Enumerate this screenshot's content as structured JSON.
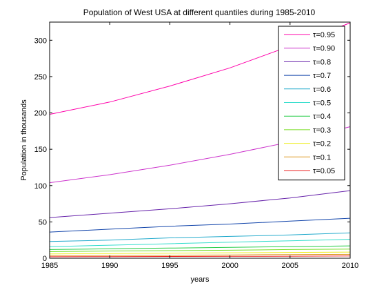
{
  "chart_data": {
    "type": "line",
    "title": "Population of West USA at different quantiles during 1985-2010",
    "xlabel": "years",
    "ylabel": "Population in thousands",
    "xlim": [
      1985,
      2010
    ],
    "ylim": [
      0,
      325
    ],
    "x_ticks": [
      1985,
      1990,
      1995,
      2000,
      2005,
      2010
    ],
    "y_ticks": [
      0,
      50,
      100,
      150,
      200,
      250,
      300
    ],
    "grid": false,
    "legend_position": "top-right",
    "x": [
      1985,
      1990,
      1995,
      2000,
      2005,
      2010
    ],
    "series": [
      {
        "name": "τ=0.95",
        "color": "#ff00aa",
        "values": [
          198,
          215,
          237,
          262,
          292,
          324
        ]
      },
      {
        "name": "τ=0.90",
        "color": "#cc33cc",
        "values": [
          104,
          115,
          128,
          143,
          160,
          181
        ]
      },
      {
        "name": "τ=0.8",
        "color": "#6622aa",
        "values": [
          56,
          62,
          68,
          75,
          83,
          93
        ]
      },
      {
        "name": "τ=0.7",
        "color": "#1144aa",
        "values": [
          36,
          40,
          44,
          47,
          51,
          55
        ]
      },
      {
        "name": "τ=0.6",
        "color": "#22aacc",
        "values": [
          23,
          25,
          28,
          30,
          32,
          35
        ]
      },
      {
        "name": "τ=0.5",
        "color": "#33ddcc",
        "values": [
          16,
          18,
          20,
          22,
          24,
          26
        ]
      },
      {
        "name": "τ=0.4",
        "color": "#22cc44",
        "values": [
          12,
          13,
          14,
          15,
          16,
          17
        ]
      },
      {
        "name": "τ=0.3",
        "color": "#77dd22",
        "values": [
          9,
          10,
          10.5,
          11,
          12,
          12.5
        ]
      },
      {
        "name": "τ=0.2",
        "color": "#eeee22",
        "values": [
          6,
          6.5,
          7,
          7.5,
          8,
          8.5
        ]
      },
      {
        "name": "τ=0.1",
        "color": "#dd9922",
        "values": [
          3.5,
          4,
          4.3,
          4.6,
          5,
          5.3
        ]
      },
      {
        "name": "τ=0.05",
        "color": "#ee2222",
        "values": [
          2,
          2.2,
          2.4,
          2.6,
          2.8,
          3
        ]
      }
    ]
  }
}
